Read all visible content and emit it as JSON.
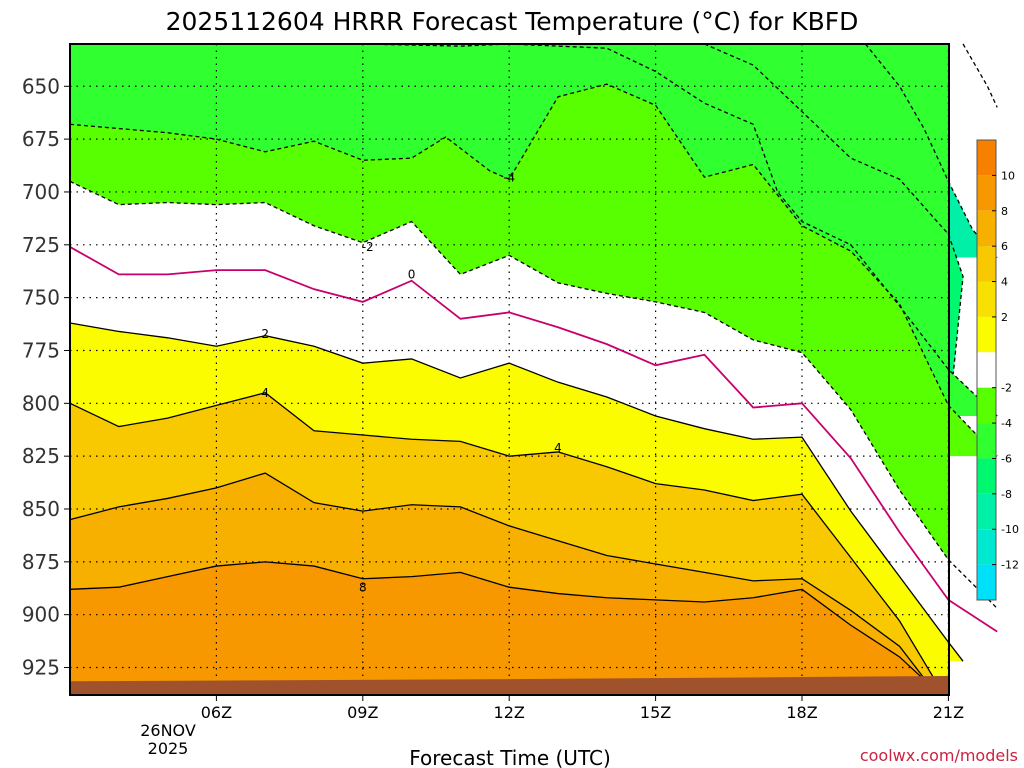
{
  "chart_data": {
    "type": "contour",
    "title": "2025112604 HRRR Forecast Temperature (°C) for KBFD",
    "xlabel": "Forecast Time (UTC)",
    "ylabel": "",
    "credit": "coolwx.com/models",
    "x_ticks": [
      "06Z",
      "09Z",
      "12Z",
      "15Z",
      "18Z",
      "21Z"
    ],
    "x_date_lines": [
      "26NOV",
      "2025"
    ],
    "x_range_hours": [
      3,
      21
    ],
    "y_ticks": [
      650,
      675,
      700,
      725,
      750,
      775,
      800,
      825,
      850,
      875,
      900,
      925
    ],
    "y_range_hPa": [
      630,
      938
    ],
    "colorbar_ticks": [
      10,
      8,
      6,
      4,
      2,
      -2,
      -4,
      -6,
      -8,
      -10,
      -12
    ],
    "colorbar_bands": [
      {
        "range": "10 to 12",
        "color": "#f88000"
      },
      {
        "range": "8 to 10",
        "color": "#f89800"
      },
      {
        "range": "6 to 8",
        "color": "#f8b000"
      },
      {
        "range": "4 to 6",
        "color": "#f8c800"
      },
      {
        "range": "2 to 4",
        "color": "#f8e000"
      },
      {
        "range": "0 to 2",
        "color": "#fcfc00"
      },
      {
        "range": "-2 to 2",
        "color": "#ffffff"
      },
      {
        "range": "-4 to -2",
        "color": "#58ff00"
      },
      {
        "range": "-6 to -4",
        "color": "#30ff30"
      },
      {
        "range": "-8 to -6",
        "color": "#00f870"
      },
      {
        "range": "-10 to -8",
        "color": "#00f0a8"
      },
      {
        "range": "-12 to -10",
        "color": "#00e8d0"
      },
      {
        "range": "below -12",
        "color": "#00e0f8"
      }
    ],
    "contour_labels": [
      {
        "text": "-4",
        "hour": 12.0,
        "hPa": 695
      },
      {
        "text": "-2",
        "hour": 9.1,
        "hPa": 728
      },
      {
        "text": "0",
        "hour": 10.0,
        "hPa": 741
      },
      {
        "text": "2",
        "hour": 7.0,
        "hPa": 769
      },
      {
        "text": "4",
        "hour": 7.0,
        "hPa": 797
      },
      {
        "text": "4",
        "hour": 13.0,
        "hPa": 823
      },
      {
        "text": "8",
        "hour": 9.0,
        "hPa": 889
      }
    ],
    "isotherms": [
      {
        "value": 8,
        "points": [
          [
            3,
            888
          ],
          [
            4,
            887
          ],
          [
            5,
            882
          ],
          [
            6,
            877
          ],
          [
            7,
            875
          ],
          [
            8,
            877
          ],
          [
            9,
            883
          ],
          [
            10,
            882
          ],
          [
            11,
            880
          ],
          [
            12,
            887
          ],
          [
            13,
            890
          ],
          [
            14,
            892
          ],
          [
            15,
            893
          ],
          [
            16,
            894
          ],
          [
            17,
            892
          ],
          [
            18,
            888
          ],
          [
            19,
            905
          ],
          [
            20,
            920
          ],
          [
            20.7,
            935
          ]
        ]
      },
      {
        "value": 6,
        "points": [
          [
            3,
            855
          ],
          [
            4,
            849
          ],
          [
            5,
            845
          ],
          [
            6,
            840
          ],
          [
            7,
            833
          ],
          [
            8,
            847
          ],
          [
            9,
            851
          ],
          [
            10,
            848
          ],
          [
            11,
            849
          ],
          [
            12,
            858
          ],
          [
            13,
            865
          ],
          [
            14,
            872
          ],
          [
            15,
            876
          ],
          [
            16,
            880
          ],
          [
            17,
            884
          ],
          [
            18,
            883
          ],
          [
            19,
            898
          ],
          [
            20,
            915
          ],
          [
            20.5,
            930
          ]
        ]
      },
      {
        "value": 4,
        "points": [
          [
            3,
            800
          ],
          [
            4,
            811
          ],
          [
            5,
            807
          ],
          [
            6,
            801
          ],
          [
            7,
            795
          ],
          [
            8,
            813
          ],
          [
            9,
            815
          ],
          [
            10,
            817
          ],
          [
            11,
            818
          ],
          [
            12,
            825
          ],
          [
            13,
            823
          ],
          [
            14,
            830
          ],
          [
            15,
            838
          ],
          [
            16,
            841
          ],
          [
            17,
            846
          ],
          [
            18,
            843
          ],
          [
            19,
            873
          ],
          [
            20,
            903
          ],
          [
            20.7,
            930
          ]
        ]
      },
      {
        "value": 2,
        "points": [
          [
            3,
            762
          ],
          [
            4,
            766
          ],
          [
            5,
            769
          ],
          [
            6,
            773
          ],
          [
            7,
            768
          ],
          [
            8,
            773
          ],
          [
            9,
            781
          ],
          [
            10,
            779
          ],
          [
            11,
            788
          ],
          [
            12,
            781
          ],
          [
            13,
            790
          ],
          [
            14,
            797
          ],
          [
            15,
            806
          ],
          [
            16,
            812
          ],
          [
            17,
            817
          ],
          [
            18,
            816
          ],
          [
            19,
            851
          ],
          [
            20,
            882
          ],
          [
            21,
            913
          ],
          [
            21.3,
            922
          ]
        ]
      },
      {
        "value": 0,
        "points": [
          [
            3,
            726
          ],
          [
            4,
            739
          ],
          [
            5,
            739
          ],
          [
            6,
            737
          ],
          [
            7,
            737
          ],
          [
            8,
            746
          ],
          [
            9,
            752
          ],
          [
            10,
            742
          ],
          [
            11,
            760
          ],
          [
            12,
            757
          ],
          [
            13,
            764
          ],
          [
            14,
            772
          ],
          [
            15,
            782
          ],
          [
            16,
            777
          ],
          [
            17,
            802
          ],
          [
            18,
            800
          ],
          [
            19,
            826
          ],
          [
            20,
            861
          ],
          [
            21,
            893
          ],
          [
            22,
            908
          ]
        ]
      },
      {
        "value": -2,
        "points": [
          [
            3,
            695
          ],
          [
            4,
            706
          ],
          [
            5,
            705
          ],
          [
            6,
            706
          ],
          [
            7,
            705
          ],
          [
            8,
            716
          ],
          [
            9,
            724
          ],
          [
            10,
            714
          ],
          [
            11,
            739
          ],
          [
            12,
            730
          ],
          [
            13,
            743
          ],
          [
            14,
            748
          ],
          [
            15,
            752
          ],
          [
            16,
            757
          ],
          [
            17,
            770
          ],
          [
            18,
            776
          ],
          [
            19,
            803
          ],
          [
            20,
            841
          ],
          [
            21,
            874
          ],
          [
            22,
            897
          ]
        ]
      },
      {
        "value": -4,
        "points": [
          [
            3,
            668
          ],
          [
            4,
            670
          ],
          [
            5,
            672
          ],
          [
            6,
            675
          ],
          [
            7,
            681
          ],
          [
            8,
            676
          ],
          [
            9,
            685
          ],
          [
            10,
            684
          ],
          [
            10.7,
            674
          ],
          [
            11.6,
            690
          ],
          [
            12,
            694
          ],
          [
            13,
            655
          ],
          [
            14,
            649
          ],
          [
            15,
            659
          ],
          [
            16,
            693
          ],
          [
            17,
            687
          ],
          [
            18,
            716
          ],
          [
            19,
            728
          ],
          [
            20,
            753
          ],
          [
            21,
            801
          ],
          [
            22,
            825
          ]
        ]
      },
      {
        "value": -6,
        "points": [
          [
            9,
            630
          ],
          [
            11,
            631
          ],
          [
            12,
            630
          ],
          [
            14,
            632
          ],
          [
            15,
            643
          ],
          [
            16,
            658
          ],
          [
            17,
            668
          ],
          [
            17.5,
            700
          ],
          [
            18,
            714
          ],
          [
            19,
            725
          ],
          [
            20,
            754
          ],
          [
            21,
            784
          ],
          [
            22,
            806
          ]
        ]
      },
      {
        "value": -8,
        "points": [
          [
            16,
            630
          ],
          [
            17,
            640
          ],
          [
            18,
            662
          ],
          [
            19,
            684
          ],
          [
            20,
            694
          ],
          [
            21,
            720
          ],
          [
            21.3,
            740
          ],
          [
            21.1,
            786
          ]
        ]
      },
      {
        "value": -10,
        "points": [
          [
            19.3,
            630
          ],
          [
            20,
            650
          ],
          [
            20.5,
            670
          ],
          [
            21,
            695
          ],
          [
            21.5,
            718
          ],
          [
            22,
            731
          ]
        ]
      },
      {
        "value": -12,
        "points": [
          [
            21.3,
            630
          ],
          [
            21.8,
            650
          ],
          [
            22,
            660
          ]
        ]
      }
    ],
    "fills": [
      {
        "band": "-12 to -10",
        "color": "#00e8d0",
        "boundary": [
          [
            3,
            630
          ],
          [
            22,
            630
          ],
          [
            22,
            731
          ],
          [
            21.5,
            718
          ],
          [
            21,
            695
          ],
          [
            20.5,
            670
          ],
          [
            20,
            650
          ],
          [
            19.3,
            630
          ]
        ]
      },
      {
        "band": "below -12",
        "color": "#00e0f8",
        "boundary": [
          [
            21.3,
            630
          ],
          [
            22,
            630
          ],
          [
            22,
            660
          ],
          [
            21.8,
            650
          ]
        ]
      },
      {
        "band": "-10 to -8",
        "color": "#00f0a8",
        "boundary": [
          [
            3,
            630
          ],
          [
            22,
            630
          ],
          [
            22,
            731
          ],
          [
            21.5,
            718
          ],
          [
            21,
            720
          ],
          [
            21.3,
            740
          ],
          [
            21.1,
            786
          ],
          [
            22,
            806
          ]
        ]
      },
      {
        "band": "-6 to -4",
        "color": "#30ff30",
        "boundary": [
          [
            9,
            630
          ],
          [
            11,
            631
          ],
          [
            12,
            630
          ],
          [
            14,
            632
          ],
          [
            15,
            643
          ],
          [
            16,
            658
          ],
          [
            17,
            668
          ],
          [
            17.5,
            700
          ],
          [
            18,
            714
          ],
          [
            19,
            725
          ],
          [
            20,
            754
          ],
          [
            21,
            784
          ],
          [
            22,
            806
          ],
          [
            22,
            825
          ]
        ]
      }
    ],
    "underground_color": "#a0522d"
  }
}
